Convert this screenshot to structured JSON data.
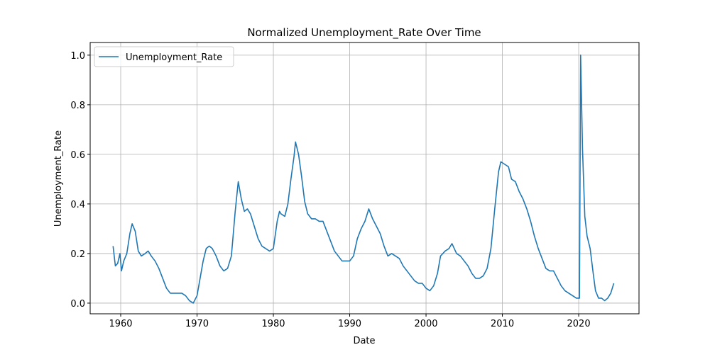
{
  "chart_data": {
    "type": "line",
    "title": "Normalized Unemployment_Rate Over Time",
    "x_label": "Date",
    "y_label": "Unemployment_Rate",
    "x": [
      1959.0,
      1959.3,
      1959.6,
      1959.9,
      1960.1,
      1960.4,
      1960.8,
      1961.2,
      1961.5,
      1961.9,
      1962.3,
      1962.7,
      1963.2,
      1963.6,
      1964.0,
      1964.5,
      1965.0,
      1965.5,
      1966.0,
      1966.5,
      1967.0,
      1967.5,
      1968.0,
      1968.5,
      1969.0,
      1969.5,
      1970.0,
      1970.4,
      1970.8,
      1971.2,
      1971.6,
      1972.0,
      1972.5,
      1973.0,
      1973.5,
      1974.0,
      1974.5,
      1975.0,
      1975.4,
      1975.8,
      1976.2,
      1976.6,
      1977.0,
      1977.5,
      1978.0,
      1978.5,
      1979.0,
      1979.5,
      1980.0,
      1980.5,
      1980.8,
      1981.0,
      1981.5,
      1981.9,
      1982.3,
      1982.7,
      1982.9,
      1983.3,
      1983.7,
      1984.1,
      1984.5,
      1985.0,
      1985.5,
      1986.0,
      1986.5,
      1987.0,
      1987.5,
      1988.0,
      1988.5,
      1989.0,
      1989.5,
      1990.0,
      1990.5,
      1991.0,
      1991.5,
      1992.0,
      1992.5,
      1993.0,
      1993.5,
      1994.0,
      1994.5,
      1995.0,
      1995.5,
      1996.0,
      1996.5,
      1997.0,
      1997.5,
      1998.0,
      1998.5,
      1999.0,
      1999.5,
      2000.0,
      2000.5,
      2001.0,
      2001.5,
      2001.9,
      2002.5,
      2003.0,
      2003.4,
      2004.0,
      2004.5,
      2005.0,
      2005.5,
      2006.0,
      2006.5,
      2007.0,
      2007.5,
      2008.0,
      2008.5,
      2009.0,
      2009.5,
      2009.8,
      2010.3,
      2010.8,
      2011.2,
      2011.7,
      2012.2,
      2012.7,
      2013.2,
      2013.7,
      2014.2,
      2014.7,
      2015.2,
      2015.7,
      2016.2,
      2016.7,
      2017.2,
      2017.7,
      2018.2,
      2018.7,
      2019.2,
      2019.7,
      2020.1,
      2020.25,
      2020.5,
      2020.8,
      2021.1,
      2021.5,
      2021.9,
      2022.2,
      2022.6,
      2023.0,
      2023.4,
      2023.8,
      2024.2,
      2024.6
    ],
    "series": [
      {
        "name": "Unemployment_Rate",
        "color": "#1f77b4",
        "values": [
          0.23,
          0.15,
          0.16,
          0.2,
          0.13,
          0.17,
          0.2,
          0.28,
          0.32,
          0.29,
          0.21,
          0.19,
          0.2,
          0.21,
          0.19,
          0.17,
          0.14,
          0.1,
          0.06,
          0.04,
          0.04,
          0.04,
          0.04,
          0.03,
          0.01,
          0.0,
          0.03,
          0.1,
          0.17,
          0.22,
          0.23,
          0.22,
          0.19,
          0.15,
          0.13,
          0.14,
          0.19,
          0.37,
          0.49,
          0.42,
          0.37,
          0.38,
          0.36,
          0.31,
          0.26,
          0.23,
          0.22,
          0.21,
          0.22,
          0.33,
          0.37,
          0.36,
          0.35,
          0.4,
          0.5,
          0.59,
          0.65,
          0.6,
          0.51,
          0.41,
          0.36,
          0.34,
          0.34,
          0.33,
          0.33,
          0.29,
          0.25,
          0.21,
          0.19,
          0.17,
          0.17,
          0.17,
          0.19,
          0.26,
          0.3,
          0.33,
          0.38,
          0.34,
          0.31,
          0.28,
          0.23,
          0.19,
          0.2,
          0.19,
          0.18,
          0.15,
          0.13,
          0.11,
          0.09,
          0.08,
          0.08,
          0.06,
          0.05,
          0.07,
          0.12,
          0.19,
          0.21,
          0.22,
          0.24,
          0.2,
          0.19,
          0.17,
          0.15,
          0.12,
          0.1,
          0.1,
          0.11,
          0.14,
          0.22,
          0.38,
          0.53,
          0.57,
          0.56,
          0.55,
          0.5,
          0.49,
          0.45,
          0.42,
          0.38,
          0.33,
          0.27,
          0.22,
          0.18,
          0.14,
          0.13,
          0.13,
          0.1,
          0.07,
          0.05,
          0.04,
          0.03,
          0.02,
          0.02,
          1.0,
          0.62,
          0.35,
          0.27,
          0.22,
          0.12,
          0.05,
          0.02,
          0.02,
          0.01,
          0.02,
          0.04,
          0.08
        ]
      }
    ],
    "xlim": [
      1956.0,
      2027.9
    ],
    "xticks": [
      1960,
      1970,
      1980,
      1990,
      2000,
      2010,
      2020
    ],
    "ylim": [
      -0.043,
      1.051
    ],
    "yticks": [
      {
        "value": 0,
        "label": "0.0"
      },
      {
        "value": 0.2,
        "label": "0.2"
      },
      {
        "value": 0.4,
        "label": "0.4"
      },
      {
        "value": 0.6,
        "label": "0.6"
      },
      {
        "value": 0.8,
        "label": "0.8"
      },
      {
        "value": 1,
        "label": "1.0"
      }
    ],
    "grid": true,
    "legend": "upper left"
  }
}
